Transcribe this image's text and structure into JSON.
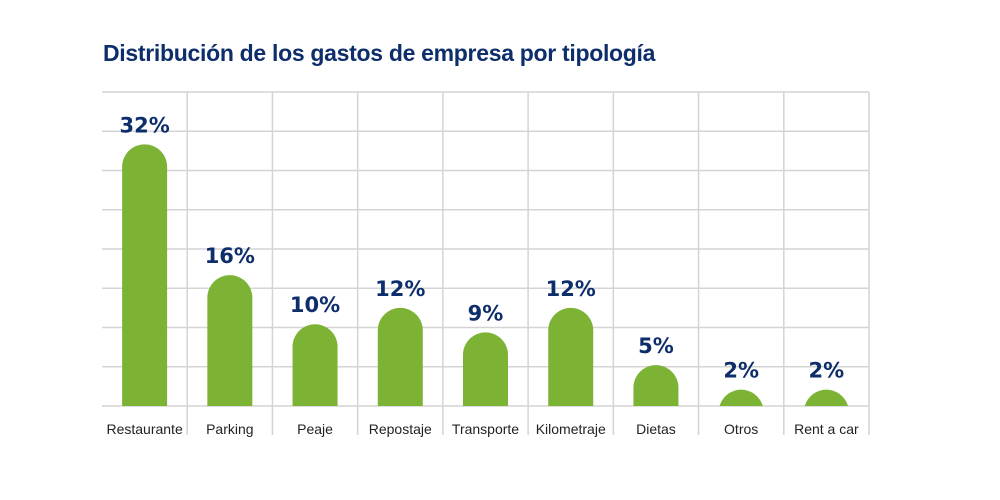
{
  "chart_data": {
    "type": "bar",
    "title": "Distribución de los gastos de empresa por tipología",
    "categories": [
      "Restaurante",
      "Parking",
      "Peaje",
      "Repostaje",
      "Transporte",
      "Kilometraje",
      "Dietas",
      "Otros",
      "Rent a car"
    ],
    "values": [
      32,
      16,
      10,
      12,
      9,
      12,
      5,
      2,
      2
    ],
    "data_labels": [
      "32%",
      "16%",
      "10%",
      "12%",
      "9%",
      "12%",
      "5%",
      "2%",
      "2%"
    ],
    "xlabel": "",
    "ylabel": "",
    "ylim": [
      0,
      38.4
    ],
    "grid": true,
    "bar_color": "#7cb335",
    "label_color": "#0d2d6b"
  }
}
